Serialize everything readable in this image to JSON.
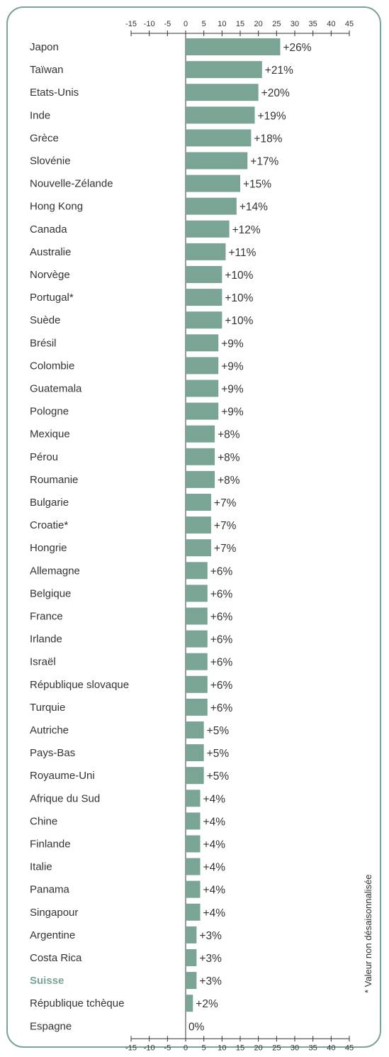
{
  "chart_data": {
    "type": "bar",
    "orientation": "horizontal",
    "title": "",
    "xlabel": "",
    "ylabel": "",
    "xlim": [
      -15,
      45
    ],
    "ticks": [
      -15,
      -10,
      -5,
      0,
      5,
      10,
      15,
      20,
      25,
      30,
      35,
      40,
      45
    ],
    "tick_labels": [
      "-15",
      "-10",
      "-5",
      "0",
      "5",
      "10",
      "15",
      "20",
      "25",
      "30",
      "35",
      "40",
      "45"
    ],
    "grid": false,
    "bar_color": "#7aa595",
    "highlight_color": "#7aa595",
    "highlight_category": "Suisse",
    "categories": [
      "Japon",
      "Taïwan",
      "Etats-Unis",
      "Inde",
      "Grèce",
      "Slovénie",
      "Nouvelle-Zélande",
      "Hong Kong",
      "Canada",
      "Australie",
      "Norvège",
      "Portugal*",
      "Suède",
      "Brésil",
      "Colombie",
      "Guatemala",
      "Pologne",
      "Mexique",
      "Pérou",
      "Roumanie",
      "Bulgarie",
      "Croatie*",
      "Hongrie",
      "Allemagne",
      "Belgique",
      "France",
      "Irlande",
      "Israël",
      "République slovaque",
      "Turquie",
      "Autriche",
      "Pays-Bas",
      "Royaume-Uni",
      "Afrique du Sud",
      "Chine",
      "Finlande",
      "Italie",
      "Panama",
      "Singapour",
      "Argentine",
      "Costa Rica",
      "Suisse",
      "République tchèque",
      "Espagne"
    ],
    "values": [
      26,
      21,
      20,
      19,
      18,
      17,
      15,
      14,
      12,
      11,
      10,
      10,
      10,
      9,
      9,
      9,
      9,
      8,
      8,
      8,
      7,
      7,
      7,
      6,
      6,
      6,
      6,
      6,
      6,
      6,
      5,
      5,
      5,
      4,
      4,
      4,
      4,
      4,
      4,
      3,
      3,
      3,
      2,
      0
    ],
    "value_labels": [
      "+26%",
      "+21%",
      "+20%",
      "+19%",
      "+18%",
      "+17%",
      "+15%",
      "+14%",
      "+12%",
      "+11%",
      "+10%",
      "+10%",
      "+10%",
      "+9%",
      "+9%",
      "+9%",
      "+9%",
      "+8%",
      "+8%",
      "+8%",
      "+7%",
      "+7%",
      "+7%",
      "+6%",
      "+6%",
      "+6%",
      "+6%",
      "+6%",
      "+6%",
      "+6%",
      "+5%",
      "+5%",
      "+5%",
      "+4%",
      "+4%",
      "+4%",
      "+4%",
      "+4%",
      "+4%",
      "+3%",
      "+3%",
      "+3%",
      "+2%",
      "0%"
    ],
    "footnote": "* Valeur non désaisonnalisée"
  }
}
